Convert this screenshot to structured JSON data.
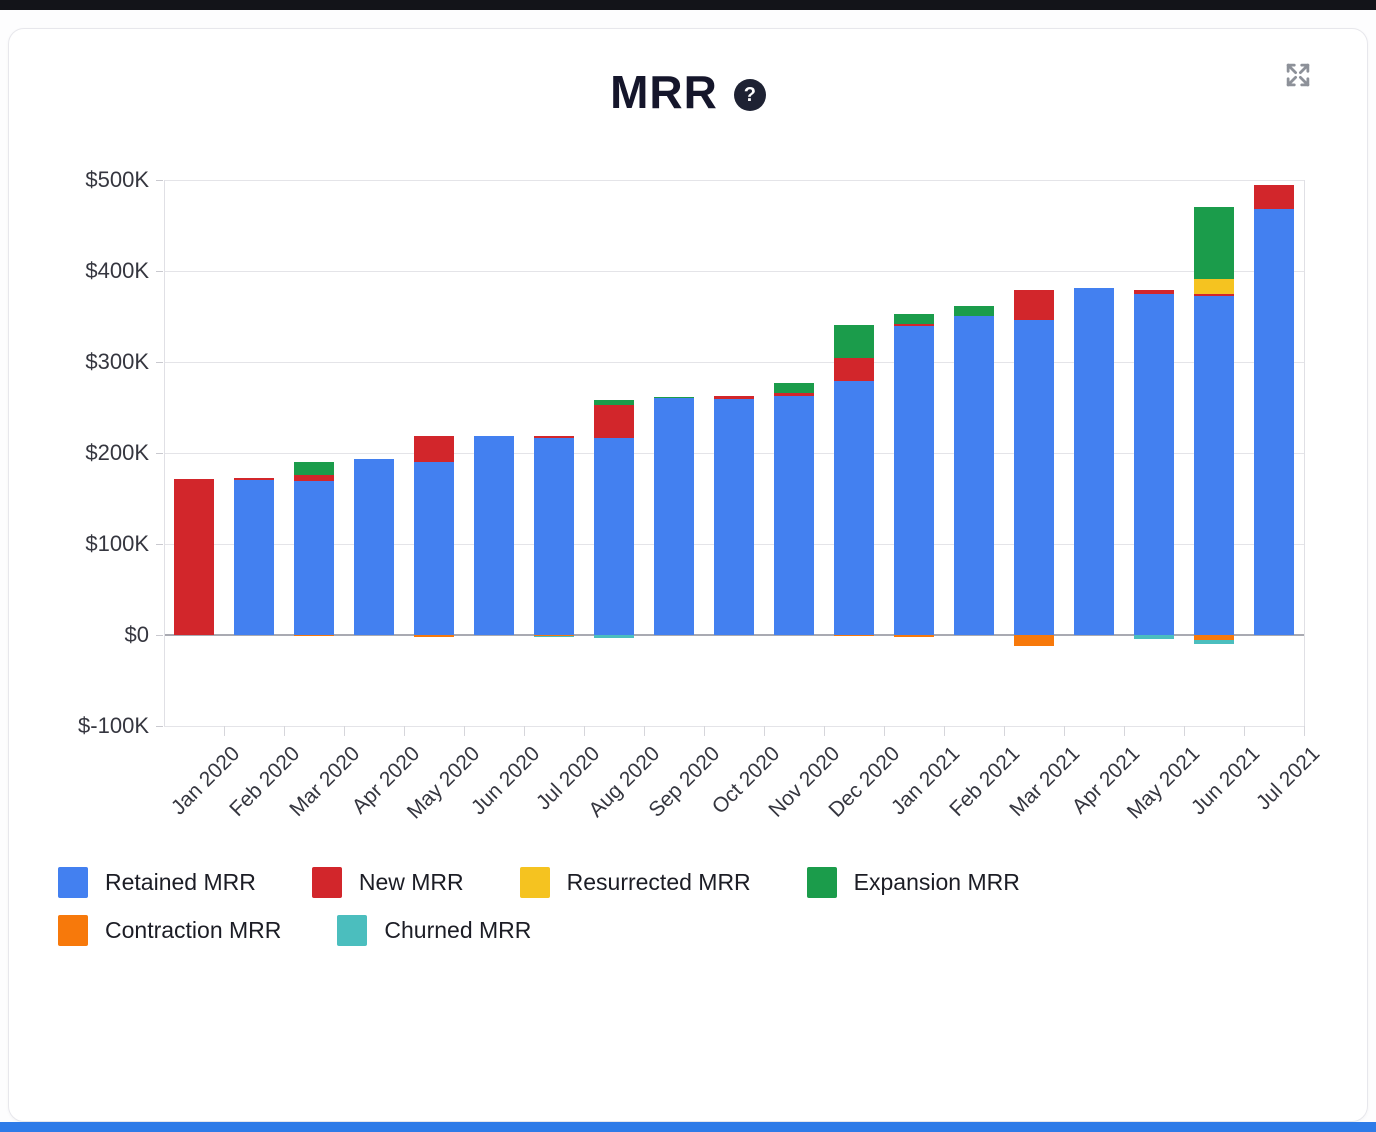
{
  "header": {
    "title": "MRR",
    "help_icon_glyph": "?",
    "icons": {
      "help": "question-mark-icon",
      "expand": "expand-arrows-icon"
    }
  },
  "colors": {
    "retained": "#4380f0",
    "new": "#d2262b",
    "resurrected": "#f5c320",
    "expansion": "#1b9c4b",
    "contraction": "#f7790b",
    "churned": "#4bbebe",
    "zero_line": "#a9aab2",
    "gridline": "#e4e4e8",
    "accent_bottom_bar": "#2e7be8"
  },
  "legend": {
    "items": [
      {
        "label": "Retained MRR",
        "color": "#4380f0"
      },
      {
        "label": "New MRR",
        "color": "#d2262b"
      },
      {
        "label": "Resurrected MRR",
        "color": "#f5c320"
      },
      {
        "label": "Expansion MRR",
        "color": "#1b9c4b"
      },
      {
        "label": "Contraction MRR",
        "color": "#f7790b"
      },
      {
        "label": "Churned MRR",
        "color": "#4bbebe"
      }
    ]
  },
  "chart_data": {
    "type": "bar",
    "stacked": true,
    "title": "MRR",
    "unit": "USD",
    "xlabel": "",
    "ylabel": "",
    "ylim": [
      -100000,
      500000
    ],
    "grid": "horizontal",
    "legend_position": "bottom",
    "categories": [
      "Jan 2020",
      "Feb 2020",
      "Mar 2020",
      "Apr 2020",
      "May 2020",
      "Jun 2020",
      "Jul 2020",
      "Aug 2020",
      "Sep 2020",
      "Oct 2020",
      "Nov 2020",
      "Dec 2020",
      "Jan 2021",
      "Feb 2021",
      "Mar 2021",
      "Apr 2021",
      "May 2021",
      "Jun 2021",
      "Jul 2021"
    ],
    "y_ticks": [
      {
        "label": "$500K",
        "value": 500000
      },
      {
        "label": "$400K",
        "value": 400000
      },
      {
        "label": "$300K",
        "value": 300000
      },
      {
        "label": "$200K",
        "value": 200000
      },
      {
        "label": "$100K",
        "value": 100000
      },
      {
        "label": "$0",
        "value": 0
      },
      {
        "label": "$-100K",
        "value": -100000
      }
    ],
    "series": [
      {
        "name": "Retained MRR",
        "color": "#4380f0",
        "values": [
          0,
          170000,
          169000,
          193000,
          190000,
          219000,
          216000,
          217000,
          260000,
          259000,
          263000,
          279000,
          340000,
          351000,
          346000,
          381000,
          375000,
          372000,
          468000
        ]
      },
      {
        "name": "New MRR",
        "color": "#d2262b",
        "values": [
          171000,
          2000,
          7000,
          0,
          29000,
          0,
          3000,
          36000,
          0,
          4000,
          3000,
          25000,
          2000,
          0,
          33000,
          0,
          4000,
          3000,
          27000
        ]
      },
      {
        "name": "Resurrected MRR",
        "color": "#f5c320",
        "values": [
          0,
          0,
          0,
          0,
          0,
          0,
          0,
          0,
          0,
          0,
          0,
          0,
          0,
          0,
          0,
          0,
          0,
          16000,
          0
        ]
      },
      {
        "name": "Expansion MRR",
        "color": "#1b9c4b",
        "values": [
          0,
          0,
          14000,
          0,
          0,
          0,
          0,
          5000,
          1000,
          0,
          11000,
          37000,
          11000,
          10000,
          0,
          0,
          0,
          79000,
          0
        ]
      },
      {
        "name": "Contraction MRR",
        "color": "#f7790b",
        "values": [
          0,
          0,
          -1000,
          0,
          -2000,
          0,
          -1000,
          0,
          0,
          0,
          0,
          -1000,
          -2000,
          0,
          -12000,
          0,
          0,
          -6000,
          0
        ]
      },
      {
        "name": "Churned MRR",
        "color": "#4bbebe",
        "values": [
          0,
          0,
          0,
          0,
          0,
          0,
          -1000,
          -3000,
          0,
          0,
          0,
          0,
          0,
          0,
          0,
          0,
          -4000,
          -4000,
          0
        ]
      }
    ]
  }
}
